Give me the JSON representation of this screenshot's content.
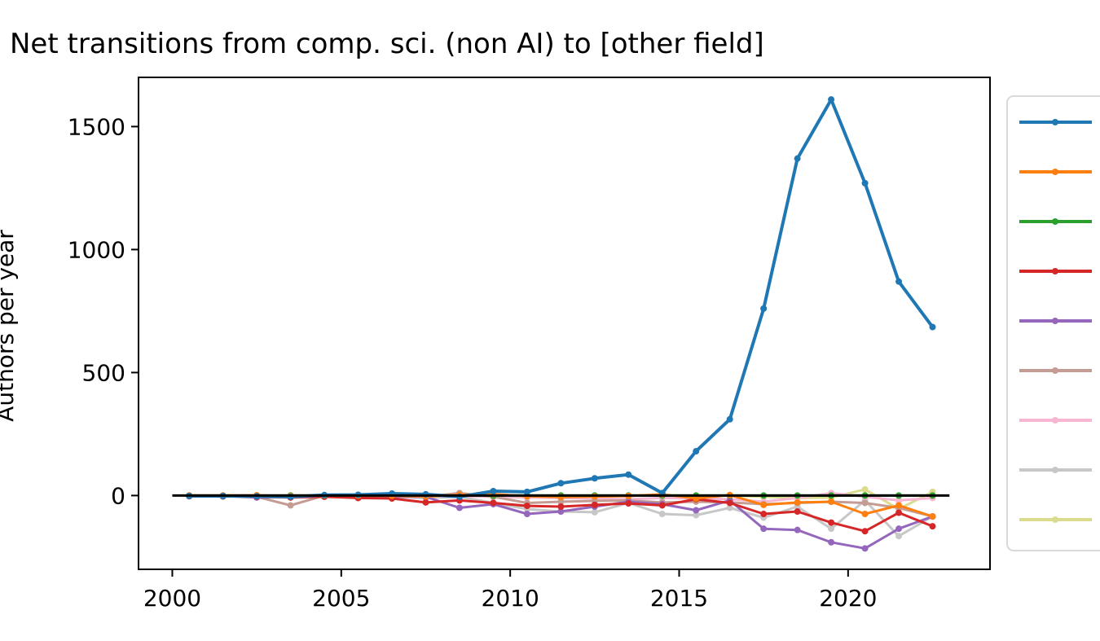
{
  "chart_data": {
    "type": "line",
    "title": "Net transitions from comp. sci. (non AI) to [other field]",
    "xlabel": "",
    "ylabel": "Authors per year",
    "xlim": [
      1999,
      2024.2
    ],
    "ylim": [
      -300,
      1700
    ],
    "xticks": [
      2000,
      2005,
      2010,
      2015,
      2020
    ],
    "yticks": [
      0,
      500,
      1000,
      1500
    ],
    "grid": false,
    "legend_position": "outside-right",
    "x": [
      2000.5,
      2001.5,
      2002.5,
      2003.5,
      2004.5,
      2005.5,
      2006.5,
      2007.5,
      2008.5,
      2009.5,
      2010.5,
      2011.5,
      2012.5,
      2013.5,
      2014.5,
      2015.5,
      2016.5,
      2017.5,
      2018.5,
      2019.5,
      2020.5,
      2021.5,
      2022.5
    ],
    "series": [
      {
        "color": "#1f77b4",
        "values": [
          -2,
          -2,
          -3,
          -5,
          2,
          3,
          8,
          5,
          -5,
          18,
          15,
          50,
          70,
          85,
          10,
          180,
          310,
          760,
          1370,
          1610,
          1270,
          870,
          685
        ]
      },
      {
        "color": "#ff7f0e",
        "values": [
          0,
          0,
          1,
          -2,
          1,
          0,
          -1,
          -4,
          3,
          6,
          -3,
          -6,
          -4,
          -2,
          5,
          -12,
          2,
          -38,
          -28,
          -25,
          -75,
          -40,
          -85
        ]
      },
      {
        "color": "#2ca02c",
        "values": [
          0,
          0,
          0,
          0,
          0,
          0,
          0,
          0,
          0,
          0,
          0,
          0,
          0,
          0,
          0,
          0,
          0,
          0,
          0,
          0,
          0,
          0,
          0
        ]
      },
      {
        "color": "#d62728",
        "values": [
          -3,
          -3,
          -5,
          -8,
          -5,
          -10,
          -12,
          -28,
          -20,
          -30,
          -42,
          -45,
          -38,
          -32,
          -40,
          -15,
          -30,
          -75,
          -65,
          -110,
          -145,
          -70,
          -125
        ]
      },
      {
        "color": "#9467bd",
        "values": [
          -2,
          -2,
          -8,
          -5,
          0,
          0,
          -5,
          -5,
          -50,
          -35,
          -75,
          -65,
          -45,
          -25,
          -35,
          -60,
          -20,
          -135,
          -140,
          -190,
          -215,
          -135,
          -85
        ]
      },
      {
        "color": "#c49c94",
        "values": [
          0,
          0,
          -5,
          -40,
          0,
          -10,
          0,
          -5,
          10,
          -5,
          -30,
          -25,
          -22,
          -20,
          -28,
          -25,
          -28,
          -35,
          -30,
          -25,
          -30,
          -50,
          -85
        ]
      },
      {
        "color": "#f7b6d2",
        "values": [
          0,
          0,
          0,
          0,
          0,
          0,
          0,
          -2,
          -3,
          -5,
          -8,
          -10,
          -12,
          -15,
          -10,
          -12,
          -15,
          -25,
          -10,
          10,
          -5,
          -20,
          -10
        ]
      },
      {
        "color": "#c7c7c7",
        "values": [
          0,
          -5,
          0,
          0,
          0,
          0,
          -5,
          -10,
          -5,
          -30,
          -55,
          -65,
          -68,
          -30,
          -75,
          -80,
          -50,
          -90,
          -45,
          -135,
          -20,
          -165,
          -85
        ]
      },
      {
        "color": "#dbdb8d",
        "values": [
          0,
          0,
          0,
          0,
          0,
          0,
          0,
          0,
          0,
          0,
          0,
          0,
          0,
          0,
          0,
          0,
          0,
          -5,
          -10,
          -8,
          25,
          -55,
          15
        ]
      }
    ],
    "reference_line": {
      "y": 0,
      "x_from": 2000,
      "x_to": 2023,
      "color": "#000000"
    }
  }
}
